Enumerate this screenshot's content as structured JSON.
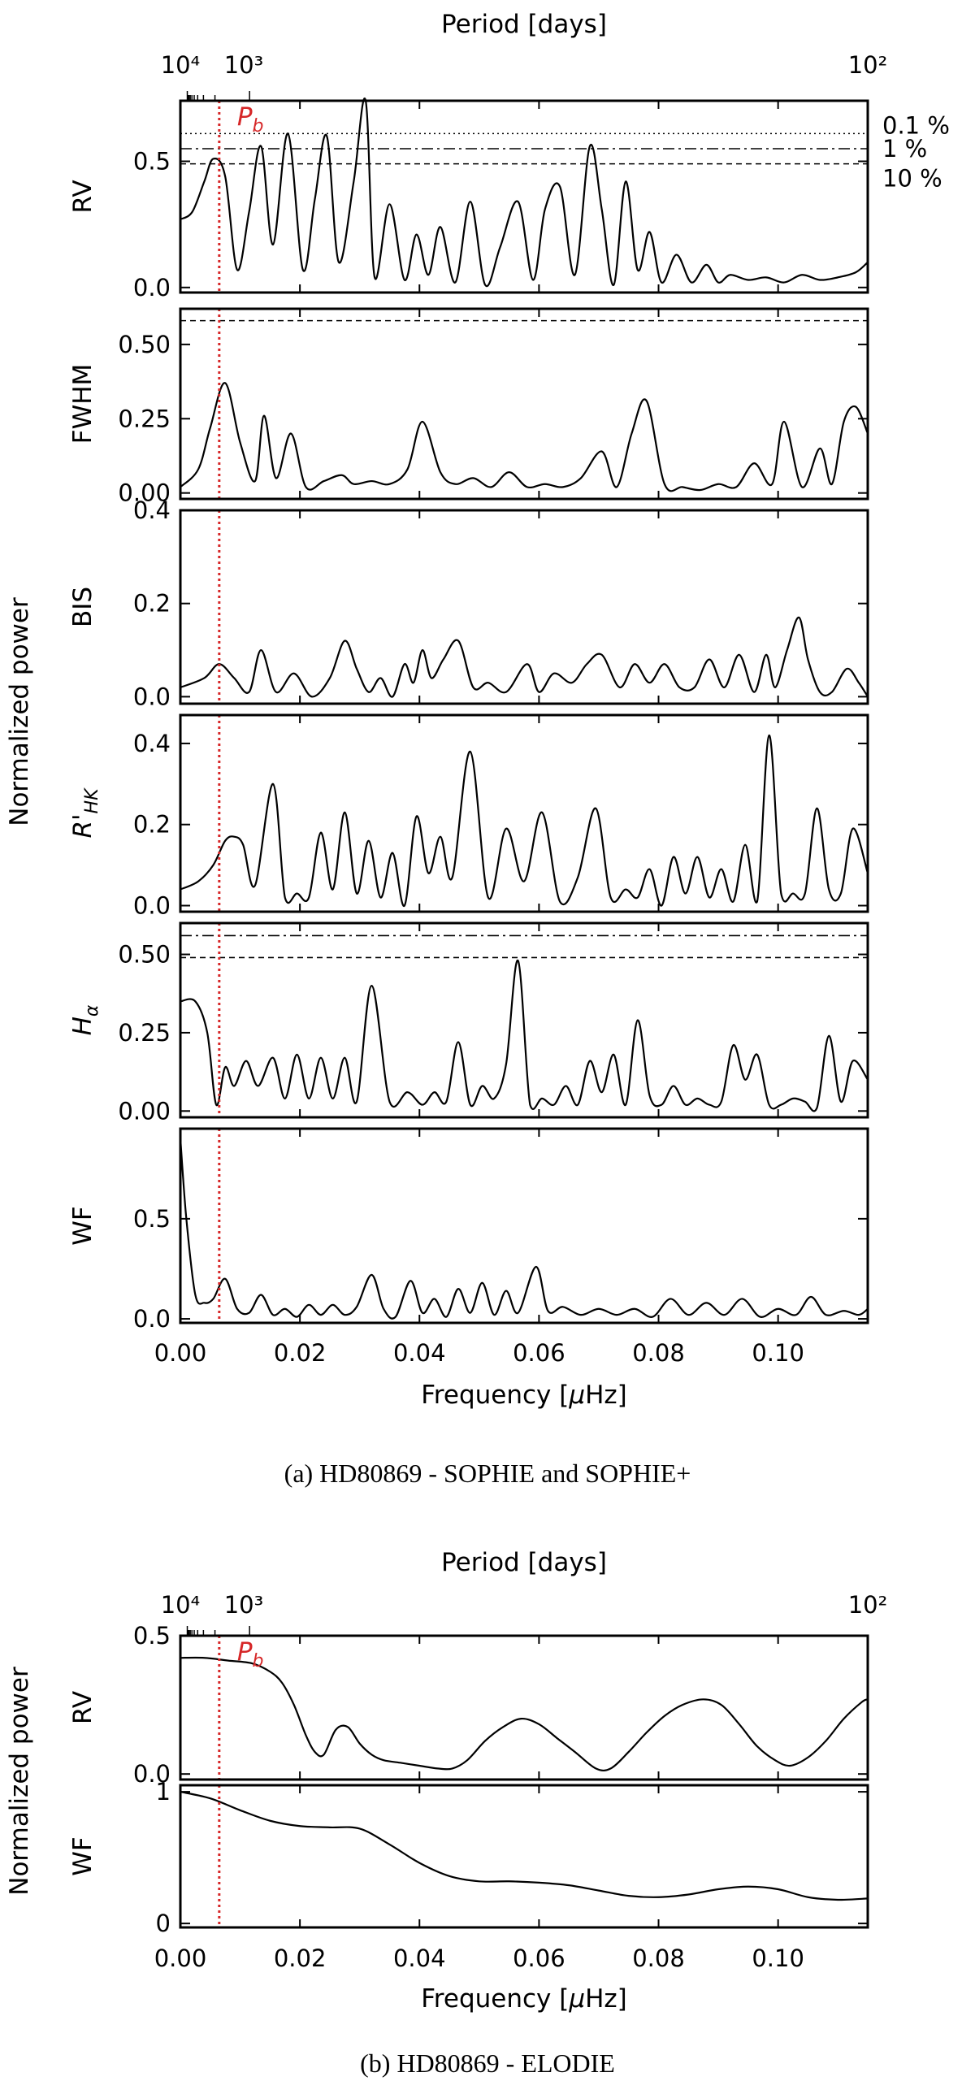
{
  "figure": {
    "colors": {
      "text": "#000000",
      "marker": "#d62728"
    },
    "marker_frequency": 0.0065,
    "x_range": [
      0,
      0.115
    ]
  },
  "chart_data": [
    {
      "id": "a",
      "type": "line",
      "caption": "(a) HD80869 - SOPHIE and SOPHIE+",
      "xlabel": "Frequency [μHz]",
      "top_xlabel": "Period [days]",
      "top_tick_labels": [
        "10⁴",
        "10³",
        "10²"
      ],
      "x_ticks": [
        "0.00",
        "0.02",
        "0.04",
        "0.06",
        "0.08",
        "0.10"
      ],
      "ylabel": "Normalized power",
      "marker_label": "P_b",
      "fap_labels": [
        "0.1 %",
        "1 %",
        "10 %"
      ],
      "panels": [
        {
          "name": "RV",
          "ylim": [
            -0.02,
            0.74
          ],
          "yticks": [
            "0.0",
            "0.5"
          ],
          "ytick_values": [
            0.0,
            0.5
          ],
          "fap_levels": [
            0.61,
            0.55,
            0.49
          ],
          "x": [
            0,
            0.002,
            0.004,
            0.0055,
            0.0075,
            0.0095,
            0.0115,
            0.0135,
            0.0155,
            0.018,
            0.0205,
            0.0225,
            0.0245,
            0.0265,
            0.029,
            0.031,
            0.0325,
            0.035,
            0.0375,
            0.0395,
            0.0415,
            0.0435,
            0.046,
            0.0485,
            0.051,
            0.0535,
            0.0565,
            0.059,
            0.061,
            0.0635,
            0.066,
            0.0685,
            0.0705,
            0.0725,
            0.0745,
            0.0765,
            0.0785,
            0.0805,
            0.083,
            0.0855,
            0.088,
            0.09,
            0.092,
            0.095,
            0.098,
            0.101,
            0.104,
            0.107,
            0.11,
            0.113,
            0.115
          ],
          "values": [
            0.27,
            0.3,
            0.42,
            0.51,
            0.44,
            0.07,
            0.3,
            0.56,
            0.17,
            0.61,
            0.07,
            0.35,
            0.6,
            0.1,
            0.42,
            0.74,
            0.04,
            0.33,
            0.03,
            0.21,
            0.05,
            0.24,
            0.02,
            0.34,
            0.01,
            0.16,
            0.34,
            0.03,
            0.31,
            0.4,
            0.05,
            0.56,
            0.31,
            0.01,
            0.42,
            0.07,
            0.22,
            0.02,
            0.13,
            0.02,
            0.09,
            0.02,
            0.05,
            0.03,
            0.04,
            0.02,
            0.05,
            0.03,
            0.04,
            0.06,
            0.1
          ]
        },
        {
          "name": "FWHM",
          "ylim": [
            -0.02,
            0.62
          ],
          "yticks": [
            "0.00",
            "0.25",
            "0.50"
          ],
          "ytick_values": [
            0.0,
            0.25,
            0.5
          ],
          "fap_levels": [
            0.58
          ],
          "x": [
            0,
            0.003,
            0.005,
            0.0075,
            0.01,
            0.0125,
            0.014,
            0.016,
            0.0185,
            0.021,
            0.024,
            0.027,
            0.029,
            0.032,
            0.035,
            0.038,
            0.0405,
            0.0435,
            0.046,
            0.049,
            0.052,
            0.055,
            0.058,
            0.061,
            0.064,
            0.067,
            0.0705,
            0.073,
            0.0755,
            0.078,
            0.081,
            0.084,
            0.087,
            0.09,
            0.093,
            0.096,
            0.099,
            0.101,
            0.104,
            0.107,
            0.109,
            0.111,
            0.113,
            0.115
          ],
          "values": [
            0.02,
            0.08,
            0.22,
            0.37,
            0.17,
            0.04,
            0.26,
            0.05,
            0.2,
            0.02,
            0.04,
            0.06,
            0.03,
            0.04,
            0.03,
            0.08,
            0.24,
            0.07,
            0.03,
            0.05,
            0.02,
            0.07,
            0.02,
            0.03,
            0.02,
            0.05,
            0.14,
            0.02,
            0.2,
            0.31,
            0.03,
            0.02,
            0.01,
            0.03,
            0.02,
            0.1,
            0.03,
            0.24,
            0.02,
            0.15,
            0.03,
            0.24,
            0.29,
            0.2
          ]
        },
        {
          "name": "BIS",
          "ylim": [
            -0.015,
            0.4
          ],
          "yticks": [
            "0.0",
            "0.2",
            "0.4"
          ],
          "ytick_values": [
            0.0,
            0.2,
            0.4
          ],
          "fap_levels": [],
          "x": [
            0,
            0.004,
            0.0065,
            0.009,
            0.0115,
            0.0135,
            0.016,
            0.019,
            0.022,
            0.025,
            0.0275,
            0.0295,
            0.0315,
            0.0335,
            0.0355,
            0.0375,
            0.039,
            0.0405,
            0.042,
            0.044,
            0.0465,
            0.049,
            0.0515,
            0.0545,
            0.058,
            0.06,
            0.0625,
            0.0655,
            0.068,
            0.0705,
            0.0735,
            0.076,
            0.0785,
            0.081,
            0.0835,
            0.086,
            0.0885,
            0.091,
            0.0935,
            0.096,
            0.098,
            0.0995,
            0.1015,
            0.1035,
            0.105,
            0.107,
            0.109,
            0.1115,
            0.1135,
            0.115
          ],
          "values": [
            0.02,
            0.04,
            0.07,
            0.04,
            0.01,
            0.1,
            0.01,
            0.05,
            0.0,
            0.04,
            0.12,
            0.06,
            0.01,
            0.04,
            0.0,
            0.07,
            0.03,
            0.1,
            0.04,
            0.08,
            0.12,
            0.02,
            0.03,
            0.01,
            0.07,
            0.01,
            0.05,
            0.03,
            0.07,
            0.09,
            0.02,
            0.07,
            0.03,
            0.07,
            0.02,
            0.02,
            0.08,
            0.02,
            0.09,
            0.01,
            0.09,
            0.02,
            0.1,
            0.17,
            0.08,
            0.01,
            0.01,
            0.06,
            0.03,
            0.0
          ]
        },
        {
          "name": "R'HK",
          "ylim": [
            -0.015,
            0.47
          ],
          "yticks": [
            "0.0",
            "0.2",
            "0.4"
          ],
          "ytick_values": [
            0.0,
            0.2,
            0.4
          ],
          "fap_levels": [],
          "x": [
            0,
            0.003,
            0.0055,
            0.0075,
            0.009,
            0.0105,
            0.0125,
            0.0155,
            0.0175,
            0.0195,
            0.0215,
            0.0235,
            0.0255,
            0.0275,
            0.0295,
            0.0315,
            0.0335,
            0.0355,
            0.0375,
            0.0395,
            0.0415,
            0.0435,
            0.0455,
            0.0485,
            0.0515,
            0.0545,
            0.0575,
            0.0605,
            0.0635,
            0.0665,
            0.0695,
            0.072,
            0.0745,
            0.0765,
            0.0785,
            0.0805,
            0.0825,
            0.0845,
            0.0865,
            0.0885,
            0.0905,
            0.0925,
            0.0945,
            0.0965,
            0.0985,
            0.1005,
            0.1025,
            0.1045,
            0.1065,
            0.1085,
            0.1105,
            0.1125,
            0.115
          ],
          "values": [
            0.04,
            0.06,
            0.1,
            0.16,
            0.17,
            0.15,
            0.05,
            0.3,
            0.02,
            0.03,
            0.02,
            0.18,
            0.04,
            0.23,
            0.03,
            0.16,
            0.02,
            0.13,
            0.0,
            0.22,
            0.08,
            0.17,
            0.07,
            0.38,
            0.02,
            0.19,
            0.06,
            0.23,
            0.01,
            0.07,
            0.24,
            0.02,
            0.04,
            0.02,
            0.09,
            0.0,
            0.12,
            0.03,
            0.12,
            0.02,
            0.09,
            0.01,
            0.15,
            0.01,
            0.42,
            0.03,
            0.03,
            0.03,
            0.24,
            0.04,
            0.03,
            0.19,
            0.08
          ]
        },
        {
          "name": "Hα",
          "ylim": [
            -0.02,
            0.6
          ],
          "yticks": [
            "0.00",
            "0.25",
            "0.50"
          ],
          "ytick_values": [
            0.0,
            0.25,
            0.5
          ],
          "fap_levels": [
            0.56,
            0.49
          ],
          "x": [
            0,
            0.0025,
            0.0045,
            0.006,
            0.0075,
            0.009,
            0.011,
            0.013,
            0.0155,
            0.0175,
            0.0195,
            0.0215,
            0.0235,
            0.0255,
            0.0275,
            0.0295,
            0.032,
            0.035,
            0.038,
            0.0405,
            0.0425,
            0.0445,
            0.0465,
            0.0485,
            0.0505,
            0.0525,
            0.0545,
            0.0565,
            0.0585,
            0.0605,
            0.0625,
            0.0645,
            0.0665,
            0.0685,
            0.0705,
            0.0725,
            0.0745,
            0.0765,
            0.0785,
            0.0805,
            0.0825,
            0.0845,
            0.0865,
            0.0885,
            0.0905,
            0.0925,
            0.0945,
            0.0965,
            0.0985,
            0.1005,
            0.1025,
            0.1045,
            0.1065,
            0.1085,
            0.1105,
            0.1125,
            0.115
          ],
          "values": [
            0.35,
            0.35,
            0.25,
            0.02,
            0.14,
            0.08,
            0.16,
            0.08,
            0.17,
            0.04,
            0.18,
            0.04,
            0.17,
            0.04,
            0.17,
            0.03,
            0.4,
            0.03,
            0.06,
            0.02,
            0.06,
            0.03,
            0.22,
            0.02,
            0.08,
            0.04,
            0.15,
            0.48,
            0.02,
            0.04,
            0.02,
            0.08,
            0.02,
            0.16,
            0.06,
            0.18,
            0.02,
            0.29,
            0.05,
            0.02,
            0.08,
            0.02,
            0.04,
            0.02,
            0.03,
            0.21,
            0.1,
            0.18,
            0.02,
            0.02,
            0.04,
            0.03,
            0.01,
            0.24,
            0.03,
            0.16,
            0.1
          ]
        },
        {
          "name": "WF",
          "ylim": [
            -0.02,
            0.95
          ],
          "yticks": [
            "0.0",
            "0.5"
          ],
          "ytick_values": [
            0.0,
            0.5
          ],
          "fap_levels": [],
          "x": [
            0,
            0.001,
            0.0025,
            0.004,
            0.0055,
            0.0075,
            0.0095,
            0.0115,
            0.0135,
            0.0155,
            0.0175,
            0.0195,
            0.0215,
            0.0235,
            0.0255,
            0.0275,
            0.0295,
            0.032,
            0.034,
            0.036,
            0.0385,
            0.0405,
            0.0425,
            0.0445,
            0.0465,
            0.0485,
            0.0505,
            0.0525,
            0.0545,
            0.0565,
            0.0595,
            0.0615,
            0.064,
            0.067,
            0.07,
            0.073,
            0.076,
            0.079,
            0.082,
            0.085,
            0.088,
            0.091,
            0.094,
            0.097,
            0.1,
            0.103,
            0.1055,
            0.108,
            0.111,
            0.1135,
            0.115
          ],
          "values": [
            0.9,
            0.5,
            0.12,
            0.08,
            0.1,
            0.2,
            0.05,
            0.03,
            0.12,
            0.02,
            0.05,
            0.01,
            0.07,
            0.02,
            0.07,
            0.02,
            0.06,
            0.22,
            0.05,
            0.01,
            0.19,
            0.03,
            0.1,
            0.01,
            0.15,
            0.03,
            0.18,
            0.02,
            0.14,
            0.03,
            0.26,
            0.04,
            0.06,
            0.02,
            0.05,
            0.02,
            0.05,
            0.01,
            0.1,
            0.02,
            0.08,
            0.02,
            0.1,
            0.01,
            0.05,
            0.02,
            0.11,
            0.02,
            0.04,
            0.02,
            0.05
          ]
        }
      ]
    },
    {
      "id": "b",
      "type": "line",
      "caption": "(b) HD80869 - ELODIE",
      "xlabel": "Frequency [μHz]",
      "top_xlabel": "Period [days]",
      "top_tick_labels": [
        "10⁴",
        "10³",
        "10²"
      ],
      "x_ticks": [
        "0.00",
        "0.02",
        "0.04",
        "0.06",
        "0.08",
        "0.10"
      ],
      "ylabel": "Normalized power",
      "marker_label": "P_b",
      "fap_labels": [],
      "panels": [
        {
          "name": "RV",
          "ylim": [
            -0.02,
            0.5
          ],
          "yticks": [
            "0.0",
            "0.5"
          ],
          "ytick_values": [
            0.0,
            0.5
          ],
          "fap_levels": [],
          "x": [
            0,
            0.004,
            0.008,
            0.012,
            0.015,
            0.017,
            0.019,
            0.021,
            0.0225,
            0.024,
            0.026,
            0.028,
            0.03,
            0.032,
            0.034,
            0.037,
            0.04,
            0.043,
            0.0455,
            0.048,
            0.051,
            0.054,
            0.057,
            0.06,
            0.063,
            0.066,
            0.0695,
            0.072,
            0.075,
            0.078,
            0.081,
            0.084,
            0.0875,
            0.0905,
            0.0935,
            0.0965,
            0.0995,
            0.102,
            0.105,
            0.108,
            0.111,
            0.114,
            0.115
          ],
          "values": [
            0.42,
            0.42,
            0.41,
            0.4,
            0.37,
            0.33,
            0.25,
            0.14,
            0.08,
            0.07,
            0.16,
            0.17,
            0.11,
            0.07,
            0.05,
            0.04,
            0.03,
            0.02,
            0.02,
            0.05,
            0.12,
            0.17,
            0.2,
            0.18,
            0.13,
            0.08,
            0.02,
            0.02,
            0.08,
            0.15,
            0.21,
            0.25,
            0.27,
            0.25,
            0.18,
            0.1,
            0.05,
            0.03,
            0.06,
            0.12,
            0.2,
            0.26,
            0.27
          ]
        },
        {
          "name": "WF",
          "ylim": [
            -0.03,
            1.05
          ],
          "yticks": [
            "0",
            "1"
          ],
          "ytick_values": [
            0,
            1
          ],
          "fap_levels": [],
          "x": [
            0,
            0.005,
            0.01,
            0.015,
            0.02,
            0.025,
            0.03,
            0.035,
            0.04,
            0.045,
            0.05,
            0.055,
            0.06,
            0.065,
            0.07,
            0.075,
            0.08,
            0.085,
            0.09,
            0.095,
            0.1,
            0.105,
            0.11,
            0.115
          ],
          "values": [
            1.0,
            0.95,
            0.86,
            0.78,
            0.74,
            0.73,
            0.72,
            0.6,
            0.46,
            0.36,
            0.32,
            0.32,
            0.31,
            0.29,
            0.25,
            0.21,
            0.2,
            0.22,
            0.26,
            0.28,
            0.26,
            0.2,
            0.18,
            0.19
          ]
        }
      ]
    }
  ]
}
